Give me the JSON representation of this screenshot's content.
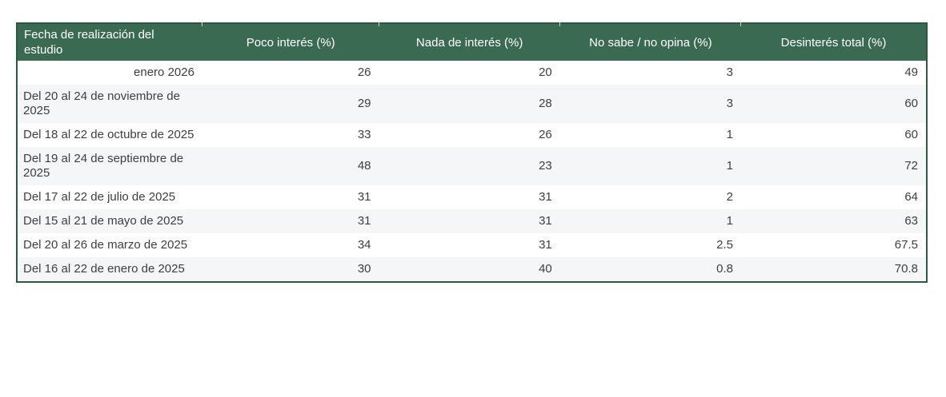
{
  "chart_data": {
    "type": "table",
    "columns": [
      {
        "label": "Fecha de realización del estudio"
      },
      {
        "label": "Poco interés (%)"
      },
      {
        "label": "Nada de interés (%)"
      },
      {
        "label": "No sabe / no opina (%)"
      },
      {
        "label": "Desinterés total (%)"
      }
    ],
    "rows": [
      {
        "fecha": "enero 2026",
        "fecha_align": "right",
        "values": [
          "26",
          "20",
          "3",
          "49"
        ]
      },
      {
        "fecha": "Del 20 al 24 de noviembre de 2025",
        "fecha_align": "left",
        "values": [
          "29",
          "28",
          "3",
          "60"
        ]
      },
      {
        "fecha": "Del 18 al 22 de octubre de 2025",
        "fecha_align": "left",
        "values": [
          "33",
          "26",
          "1",
          "60"
        ]
      },
      {
        "fecha": "Del 19 al 24 de septiembre de 2025",
        "fecha_align": "left",
        "values": [
          "48",
          "23",
          "1",
          "72"
        ]
      },
      {
        "fecha": "Del 17 al 22 de julio de 2025",
        "fecha_align": "left",
        "values": [
          "31",
          "31",
          "2",
          "64"
        ]
      },
      {
        "fecha": "Del 15 al 21 de mayo de 2025",
        "fecha_align": "left",
        "values": [
          "31",
          "31",
          "1",
          "63"
        ]
      },
      {
        "fecha": "Del 20 al 26 de marzo de 2025",
        "fecha_align": "left",
        "values": [
          "34",
          "31",
          "2.5",
          "67.5"
        ]
      },
      {
        "fecha": "Del 16 al 22 de enero de 2025",
        "fecha_align": "left",
        "values": [
          "30",
          "40",
          "0.8",
          "70.8"
        ]
      }
    ]
  },
  "colors": {
    "header_bg": "#3B6A53",
    "header_text": "#FFFFFF",
    "border": "#2E5842",
    "row_bg": "#FFFFFF",
    "row_alt_bg": "#F5F6F7",
    "body_text": "#3E3E3E"
  }
}
